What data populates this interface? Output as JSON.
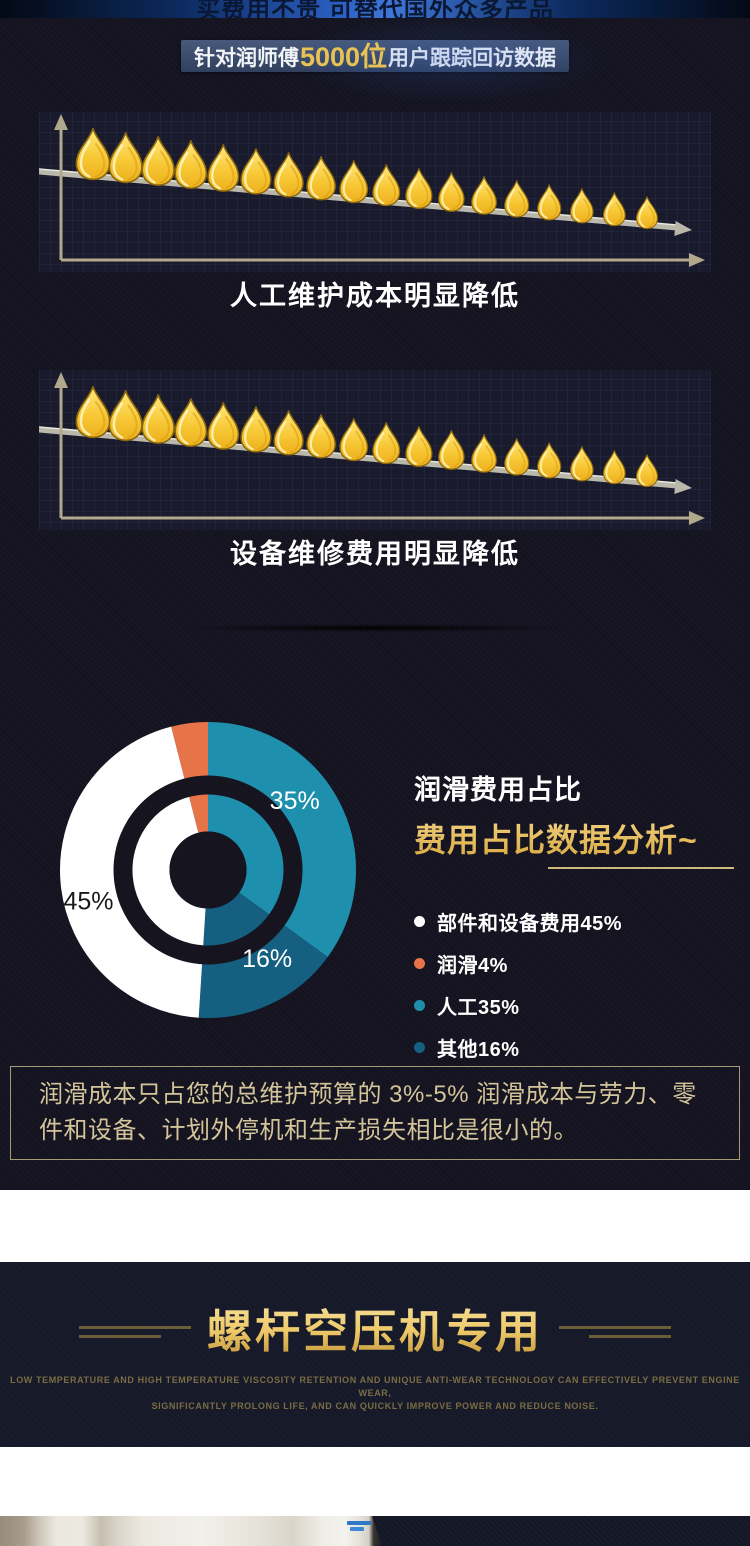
{
  "page": {
    "top_banner": "买费用不贵 可替代国外众多产品",
    "badge": {
      "prefix": "针对润师傅",
      "highlight": "5000位",
      "suffix": "用户跟踪回访数据"
    }
  },
  "chart_data": [
    {
      "type": "line",
      "variant": "pictorial-trend",
      "title": "人工维护成本明显降低",
      "icon": "oil-drop-icon",
      "icon_count": 18,
      "trend": "decreasing",
      "axes": "tan arrow axes, no tick labels",
      "grid": true
    },
    {
      "type": "line",
      "variant": "pictorial-trend",
      "title": "设备维修费用明显降低",
      "icon": "oil-drop-icon",
      "icon_count": 18,
      "trend": "decreasing",
      "axes": "tan arrow axes, no tick labels",
      "grid": true
    },
    {
      "type": "pie",
      "variant": "double-ring-donut",
      "title": "润滑费用占比",
      "subtitle": "费用占比数据分析~",
      "start": "12-oclock",
      "direction": "clockwise",
      "slices": [
        {
          "label": "人工",
          "value": 35,
          "display": "35%",
          "color": "#1f8fae",
          "label_color": "#ffffff"
        },
        {
          "label": "其他",
          "value": 16,
          "display": "16%",
          "color": "#155f80",
          "label_color": "#ffffff"
        },
        {
          "label": "部件和设备费用",
          "value": 45,
          "display": "45%",
          "color": "#ffffff",
          "label_color": "#1a1a1a"
        },
        {
          "label": "润滑",
          "value": 4,
          "display": "4%",
          "color": "#e77348",
          "label_color": "#ffffff"
        }
      ],
      "legend": [
        {
          "label": "部件和设备费用45%",
          "color": "#ffffff"
        },
        {
          "label": "润滑4%",
          "color": "#e77348"
        },
        {
          "label": "人工35%",
          "color": "#1f8fae"
        },
        {
          "label": "其他16%",
          "color": "#155f80"
        }
      ],
      "legend_position": "right"
    }
  ],
  "note": {
    "text": "润滑成本只占您的总维护预算的 3%-5% 润滑成本与劳力、零件和设备、计划外停机和生产损失相比是很小的。"
  },
  "section2": {
    "title": "螺杆空压机专用",
    "subtitle_line1": "LOW TEMPERATURE AND HIGH TEMPERATURE VISCOSITY RETENTION AND UNIQUE ANTI-WEAR TECHNOLOGY CAN EFFECTIVELY PREVENT ENGINE WEAR,",
    "subtitle_line2": "SIGNIFICANTLY PROLONG LIFE, AND CAN QUICKLY IMPROVE POWER AND REDUCE NOISE."
  },
  "colors": {
    "page_background": "#14131f",
    "gold_accent": "#e8c353",
    "axis_tan": "#b2a98c",
    "donut_teal": "#1f8fae",
    "donut_dark_teal": "#155f80",
    "donut_orange": "#e77348",
    "note_text": "#d3c49a",
    "badge_background": "#3c5070"
  }
}
